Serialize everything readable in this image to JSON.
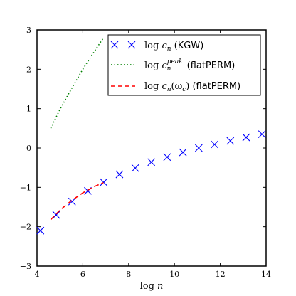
{
  "chart_data": {
    "type": "line",
    "title": "",
    "xlabel": "log n",
    "ylabel": "",
    "xlim": [
      4,
      14
    ],
    "ylim": [
      -3,
      3
    ],
    "xticks": [
      "4",
      "6",
      "8",
      "10",
      "12",
      "14"
    ],
    "yticks": [
      "3",
      "2",
      "1",
      "0",
      "−1",
      "−2",
      "−3"
    ],
    "legend_position": "top-right",
    "series": [
      {
        "name": "log c_n (KGW)",
        "style": "markers",
        "marker": "x",
        "color": "#0000ff",
        "x": [
          4.15,
          4.84,
          5.53,
          6.22,
          6.91,
          7.6,
          8.29,
          8.99,
          9.68,
          10.37,
          11.06,
          11.75,
          12.44,
          13.13,
          13.82
        ],
        "y": [
          -2.1,
          -1.7,
          -1.36,
          -1.09,
          -0.87,
          -0.67,
          -0.51,
          -0.36,
          -0.23,
          -0.11,
          0.0,
          0.09,
          0.18,
          0.27,
          0.35
        ]
      },
      {
        "name": "log c_n^peak (flatPERM)",
        "style": "dotted",
        "color": "#008000",
        "x": [
          4.6,
          5.0,
          5.5,
          6.0,
          6.5,
          6.9
        ],
        "y": [
          0.5,
          0.98,
          1.5,
          2.0,
          2.45,
          2.8
        ]
      },
      {
        "name": "log c_n(ω_c) (flatPERM)",
        "style": "dashed",
        "color": "#ff0000",
        "x": [
          4.6,
          5.0,
          5.5,
          6.0,
          6.5,
          6.9
        ],
        "y": [
          -1.82,
          -1.58,
          -1.34,
          -1.14,
          -0.98,
          -0.88
        ]
      }
    ]
  },
  "legend": {
    "items": [
      {
        "main": "log ",
        "var": "c",
        "sub": "n",
        "sup": "",
        "suffix": "",
        "note": "(KGW)"
      },
      {
        "main": "log ",
        "var": "c",
        "sub": "n",
        "sup": "peak",
        "suffix": "",
        "note": "(flatPERM)"
      },
      {
        "main": "log ",
        "var": "c",
        "sub": "n",
        "sup": "",
        "suffix": "(ω",
        "suffix_sub": "c",
        "suffix_end": ")",
        "note": "(flatPERM)"
      }
    ]
  }
}
